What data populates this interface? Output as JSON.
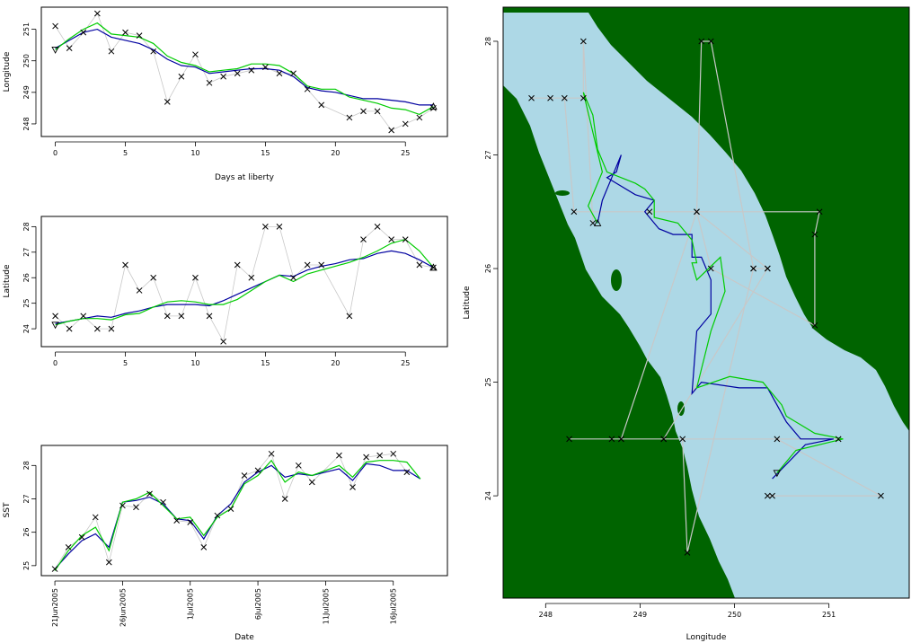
{
  "colors": {
    "raw": "#c8c8c8",
    "fit_blue": "#0000a0",
    "fit_green": "#00cc00",
    "sea": "#add8e6",
    "land": "#006400",
    "axis": "#000000"
  },
  "chart_data": [
    {
      "id": "lon",
      "type": "line",
      "xlabel": "Days at liberty",
      "ylabel": "Longitude",
      "xlim": [
        -1,
        28
      ],
      "ylim": [
        247.6,
        251.7
      ],
      "xticks": [
        0,
        5,
        10,
        15,
        20,
        25
      ],
      "yticks": [
        248,
        249,
        250,
        251
      ],
      "observations": {
        "x": [
          0,
          1,
          2,
          3,
          4,
          5,
          6,
          7,
          8,
          9,
          10,
          11,
          12,
          13,
          14,
          15,
          16,
          17,
          18,
          19,
          21,
          22,
          23,
          24,
          25,
          26,
          27
        ],
        "y": [
          251.1,
          250.4,
          250.9,
          251.5,
          250.3,
          250.9,
          250.8,
          250.3,
          248.7,
          249.5,
          250.2,
          249.3,
          249.5,
          249.6,
          249.7,
          249.8,
          249.6,
          249.6,
          249.1,
          248.6,
          248.2,
          248.4,
          248.4,
          247.8,
          248.0,
          248.2,
          248.5
        ]
      },
      "series": [
        {
          "color": "fit_blue",
          "x": [
            0,
            1,
            2,
            3,
            4,
            5,
            6,
            7,
            8,
            9,
            10,
            11,
            12,
            13,
            14,
            15,
            16,
            17,
            18,
            19,
            20,
            21,
            22,
            23,
            24,
            25,
            26,
            27
          ],
          "y": [
            250.4,
            250.65,
            250.9,
            251.0,
            250.75,
            250.65,
            250.55,
            250.35,
            250.05,
            249.85,
            249.8,
            249.6,
            249.65,
            249.7,
            249.75,
            249.75,
            249.7,
            249.5,
            249.15,
            249.05,
            249.0,
            248.9,
            248.8,
            248.8,
            248.75,
            248.7,
            248.6,
            248.6
          ]
        },
        {
          "color": "fit_green",
          "x": [
            0,
            1,
            2,
            3,
            4,
            5,
            6,
            7,
            8,
            9,
            10,
            11,
            12,
            13,
            14,
            15,
            16,
            17,
            18,
            19,
            20,
            21,
            22,
            23,
            24,
            25,
            26,
            27
          ],
          "y": [
            250.35,
            250.7,
            251.0,
            251.2,
            250.85,
            250.8,
            250.75,
            250.55,
            250.15,
            249.95,
            249.85,
            249.65,
            249.7,
            249.75,
            249.9,
            249.9,
            249.85,
            249.6,
            249.2,
            249.1,
            249.1,
            248.85,
            248.75,
            248.65,
            248.5,
            248.45,
            248.3,
            248.55
          ]
        }
      ],
      "markers": {
        "start": [
          0,
          250.35
        ],
        "end": [
          27,
          248.55
        ]
      }
    },
    {
      "id": "lat",
      "type": "line",
      "xlabel": "",
      "ylabel": "Latitude",
      "xlim": [
        -1,
        28
      ],
      "ylim": [
        23.3,
        28.4
      ],
      "xticks": [
        0,
        5,
        10,
        15,
        20,
        25
      ],
      "yticks": [
        24,
        25,
        26,
        27,
        28
      ],
      "observations": {
        "x": [
          0,
          1,
          2,
          3,
          4,
          5,
          6,
          7,
          8,
          9,
          10,
          11,
          12,
          13,
          14,
          15,
          16,
          17,
          18,
          19,
          21,
          22,
          23,
          24,
          25,
          26,
          27
        ],
        "y": [
          24.5,
          24.0,
          24.5,
          24.0,
          24.0,
          26.5,
          25.5,
          26.0,
          24.5,
          24.5,
          26.0,
          24.5,
          23.5,
          26.5,
          26.0,
          28.0,
          28.0,
          26.0,
          26.5,
          26.5,
          24.5,
          27.5,
          28.0,
          27.5,
          27.5,
          26.5,
          26.4
        ]
      },
      "series": [
        {
          "color": "fit_blue",
          "x": [
            0,
            1,
            2,
            3,
            4,
            5,
            6,
            7,
            8,
            9,
            10,
            11,
            12,
            13,
            14,
            15,
            16,
            17,
            18,
            19,
            20,
            21,
            22,
            23,
            24,
            25,
            26,
            27
          ],
          "y": [
            24.2,
            24.3,
            24.4,
            24.5,
            24.45,
            24.6,
            24.7,
            24.85,
            24.95,
            24.95,
            24.95,
            24.9,
            25.1,
            25.35,
            25.6,
            25.85,
            26.1,
            26.05,
            26.3,
            26.45,
            26.55,
            26.7,
            26.75,
            26.95,
            27.05,
            26.95,
            26.7,
            26.4
          ]
        },
        {
          "color": "fit_green",
          "x": [
            0,
            1,
            2,
            3,
            4,
            5,
            6,
            7,
            8,
            9,
            10,
            11,
            12,
            13,
            14,
            15,
            16,
            17,
            18,
            19,
            20,
            21,
            22,
            23,
            24,
            25,
            26,
            27
          ],
          "y": [
            24.15,
            24.3,
            24.4,
            24.4,
            24.35,
            24.55,
            24.6,
            24.85,
            25.05,
            25.1,
            25.05,
            24.95,
            24.95,
            25.15,
            25.5,
            25.85,
            26.1,
            25.85,
            26.15,
            26.3,
            26.45,
            26.6,
            26.8,
            27.05,
            27.35,
            27.5,
            27.05,
            26.4
          ]
        }
      ],
      "markers": {
        "start": [
          0,
          24.15
        ],
        "end": [
          27,
          26.4
        ]
      }
    },
    {
      "id": "sst",
      "type": "line",
      "xlabel": "Date",
      "ylabel": "SST",
      "xlim": [
        "2005-06-20",
        "2005-07-20"
      ],
      "ylim": [
        24.7,
        28.6
      ],
      "xticks": [
        "2005-06-21",
        "2005-06-26",
        "2005-07-01",
        "2005-07-06",
        "2005-07-11",
        "2005-07-16"
      ],
      "xticklabels": [
        "21Jun2005",
        "26Jun2005",
        "1Jul2005",
        "6Jul2005",
        "11Jul2005",
        "16Jul2005"
      ],
      "yticks": [
        25,
        26,
        27,
        28
      ],
      "observations": {
        "x": [
          "2005-06-21",
          "2005-06-22",
          "2005-06-23",
          "2005-06-24",
          "2005-06-25",
          "2005-06-26",
          "2005-06-27",
          "2005-06-28",
          "2005-06-29",
          "2005-06-30",
          "2005-07-01",
          "2005-07-02",
          "2005-07-03",
          "2005-07-04",
          "2005-07-05",
          "2005-07-06",
          "2005-07-07",
          "2005-07-08",
          "2005-07-09",
          "2005-07-10",
          "2005-07-12",
          "2005-07-13",
          "2005-07-14",
          "2005-07-15",
          "2005-07-16",
          "2005-07-17"
        ],
        "y": [
          24.9,
          25.55,
          25.85,
          26.45,
          25.1,
          26.8,
          26.75,
          27.15,
          26.9,
          26.35,
          26.3,
          25.55,
          26.5,
          26.7,
          27.7,
          27.85,
          28.35,
          27.0,
          28.0,
          27.5,
          28.3,
          27.35,
          28.25,
          28.3,
          28.35,
          27.8
        ]
      },
      "series": [
        {
          "color": "fit_blue",
          "x": [
            "2005-06-21",
            "2005-06-22",
            "2005-06-23",
            "2005-06-24",
            "2005-06-25",
            "2005-06-26",
            "2005-06-27",
            "2005-06-28",
            "2005-06-29",
            "2005-06-30",
            "2005-07-01",
            "2005-07-02",
            "2005-07-03",
            "2005-07-04",
            "2005-07-05",
            "2005-07-06",
            "2005-07-07",
            "2005-07-08",
            "2005-07-09",
            "2005-07-10",
            "2005-07-11",
            "2005-07-12",
            "2005-07-13",
            "2005-07-14",
            "2005-07-15",
            "2005-07-16",
            "2005-07-17",
            "2005-07-18"
          ],
          "y": [
            24.9,
            25.35,
            25.75,
            25.95,
            25.55,
            26.9,
            26.95,
            27.05,
            26.85,
            26.4,
            26.35,
            25.8,
            26.5,
            26.85,
            27.5,
            27.8,
            28.0,
            27.65,
            27.75,
            27.7,
            27.8,
            27.9,
            27.55,
            28.05,
            28.0,
            27.85,
            27.85,
            27.6
          ]
        },
        {
          "color": "fit_green",
          "x": [
            "2005-06-21",
            "2005-06-22",
            "2005-06-23",
            "2005-06-24",
            "2005-06-25",
            "2005-06-26",
            "2005-06-27",
            "2005-06-28",
            "2005-06-29",
            "2005-06-30",
            "2005-07-01",
            "2005-07-02",
            "2005-07-03",
            "2005-07-04",
            "2005-07-05",
            "2005-07-06",
            "2005-07-07",
            "2005-07-08",
            "2005-07-09",
            "2005-07-10",
            "2005-07-11",
            "2005-07-12",
            "2005-07-13",
            "2005-07-14",
            "2005-07-15",
            "2005-07-16",
            "2005-07-17",
            "2005-07-18"
          ],
          "y": [
            24.85,
            25.45,
            25.9,
            26.15,
            25.45,
            26.9,
            27.0,
            27.2,
            26.8,
            26.4,
            26.45,
            25.9,
            26.45,
            26.7,
            27.45,
            27.7,
            28.15,
            27.5,
            27.8,
            27.7,
            27.85,
            28.0,
            27.65,
            28.1,
            28.15,
            28.15,
            28.1,
            27.6
          ]
        }
      ]
    },
    {
      "id": "map",
      "type": "scatter",
      "xlabel": "Longitude",
      "ylabel": "Latitude",
      "xlim": [
        247.55,
        251.85
      ],
      "ylim": [
        23.1,
        28.3
      ],
      "xticks": [
        248,
        249,
        250,
        251
      ],
      "yticks": [
        24,
        25,
        26,
        27,
        28
      ],
      "observations": {
        "x": [
          250.4,
          250.35,
          251.55,
          250.45,
          251.1,
          249.25,
          248.25,
          248.8,
          249.45,
          249.5,
          250.2,
          250.35,
          249.25,
          248.7,
          248.8,
          249.6,
          249.65,
          249.75,
          250.2,
          250.35,
          249.6,
          249.75,
          250.85,
          250.85,
          250.9,
          249.1,
          248.3,
          248.2,
          248.05,
          247.85,
          248.4,
          248.4,
          248.5
        ],
        "y": [
          24.0,
          24.0,
          24.0,
          24.5,
          24.5,
          24.5,
          24.5,
          24.5,
          24.5,
          23.5,
          26.0,
          26.0,
          24.5,
          24.5,
          24.5,
          26.5,
          28.0,
          28.0,
          26.0,
          26.0,
          26.5,
          26.0,
          25.5,
          26.3,
          26.5,
          26.5,
          26.5,
          27.5,
          27.5,
          27.5,
          27.5,
          28.0,
          26.4
        ]
      },
      "series": [
        {
          "color": "fit_blue",
          "x": [
            250.4,
            250.75,
            251.05,
            250.7,
            250.55,
            250.35,
            250.05,
            249.65,
            249.55,
            249.6,
            249.75,
            249.75,
            249.65,
            249.55,
            249.55,
            249.55,
            249.35,
            249.2,
            249.05,
            249.15,
            248.95,
            248.75,
            248.65,
            248.75,
            248.8,
            248.7,
            248.6,
            248.55
          ],
          "y": [
            24.15,
            24.45,
            24.5,
            24.5,
            24.65,
            24.95,
            24.95,
            25.0,
            24.9,
            25.45,
            25.6,
            25.9,
            26.1,
            26.1,
            26.1,
            26.3,
            26.3,
            26.35,
            26.5,
            26.6,
            26.65,
            26.75,
            26.8,
            26.85,
            27.0,
            26.8,
            26.6,
            26.4
          ]
        },
        {
          "color": "fit_green",
          "x": [
            250.45,
            250.65,
            251.15,
            250.85,
            250.55,
            250.5,
            250.3,
            249.95,
            249.6,
            249.75,
            249.9,
            249.85,
            249.6,
            249.55,
            249.6,
            249.55,
            249.4,
            249.15,
            249.15,
            249.05,
            248.95,
            248.65,
            248.55,
            248.5,
            248.4,
            248.6,
            248.45,
            248.55
          ],
          "y": [
            24.2,
            24.4,
            24.5,
            24.55,
            24.7,
            24.8,
            25.0,
            25.05,
            24.95,
            25.45,
            25.8,
            26.1,
            25.9,
            26.05,
            26.05,
            26.25,
            26.4,
            26.45,
            26.6,
            26.7,
            26.75,
            26.85,
            27.05,
            27.35,
            27.55,
            26.85,
            26.55,
            26.4
          ]
        }
      ],
      "markers": {
        "start": [
          250.45,
          24.2
        ],
        "end": [
          248.55,
          26.4
        ]
      }
    }
  ]
}
